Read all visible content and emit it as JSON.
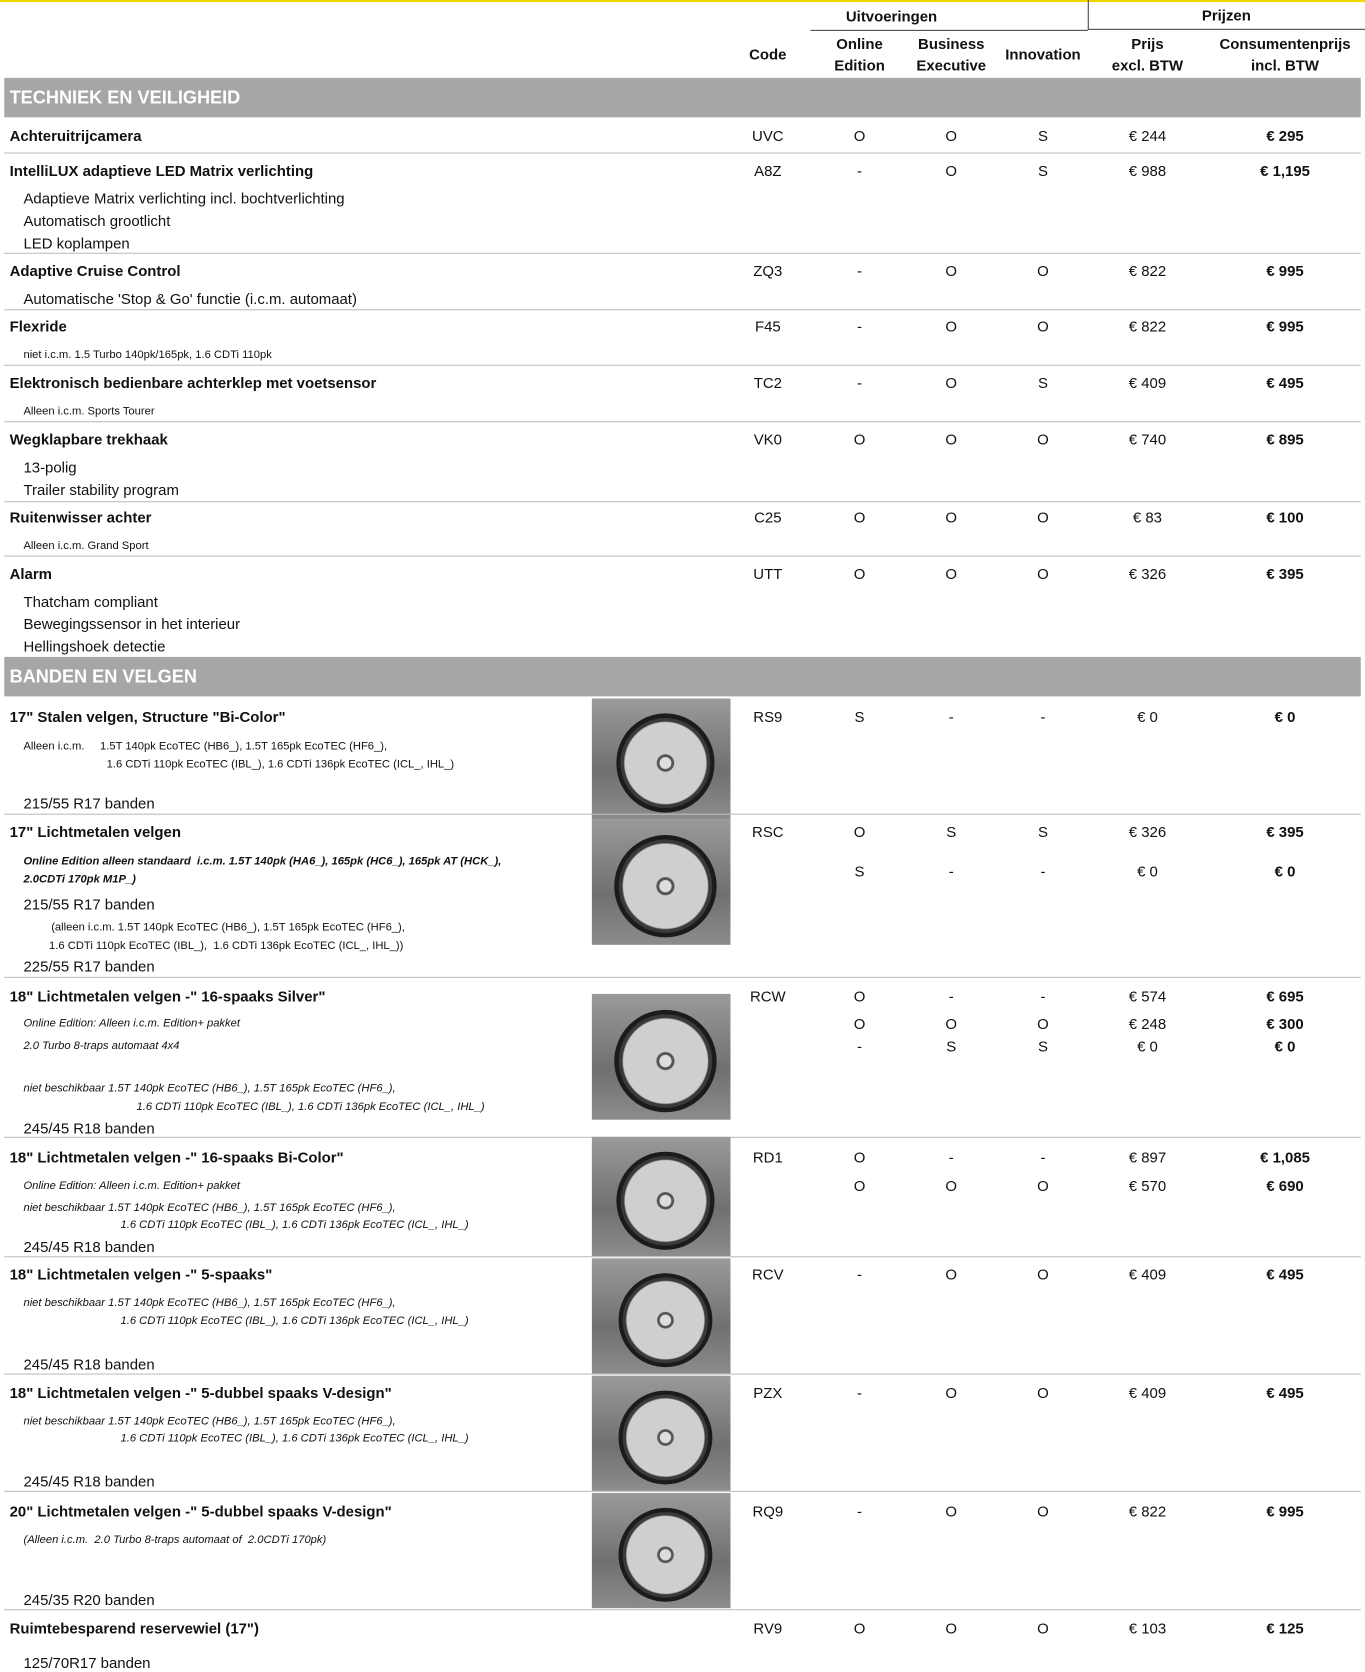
{
  "header": {
    "groups": [
      "Uitvoeringen",
      "Prijzen"
    ],
    "columns": [
      [
        "Code"
      ],
      [
        "Online",
        "Edition"
      ],
      [
        "Business",
        "Executive"
      ],
      [
        "Innovation"
      ],
      [
        "Prijs",
        "excl. BTW"
      ],
      [
        "Consumentenprijs",
        "incl. BTW"
      ]
    ]
  },
  "sections": [
    {
      "title": "TECHNIEK EN VEILIGHEID",
      "items": [
        {
          "name": "Achteruitrijcamera",
          "code": "UVC",
          "rows": [
            [
              "O",
              "O",
              "S",
              "€ 244",
              "€ 295"
            ]
          ],
          "notes": []
        },
        {
          "name": "IntelliLUX adaptieve LED Matrix verlichting",
          "code": "A8Z",
          "rows": [
            [
              "-",
              "O",
              "S",
              "€ 988",
              "€ 1,195"
            ]
          ],
          "notes": [
            "Adaptieve Matrix verlichting incl. bochtverlichting",
            "Automatisch grootlicht",
            "LED koplampen"
          ]
        },
        {
          "name": "Adaptive Cruise Control",
          "code": "ZQ3",
          "rows": [
            [
              "-",
              "O",
              "O",
              "€ 822",
              "€ 995"
            ]
          ],
          "notes": [
            "Automatische 'Stop & Go' functie (i.c.m. automaat)"
          ]
        },
        {
          "name": "Flexride",
          "code": "F45",
          "rows": [
            [
              "-",
              "O",
              "O",
              "€ 822",
              "€ 995"
            ]
          ],
          "notes": [
            "niet i.c.m. 1.5 Turbo 140pk/165pk, 1.6 CDTi 110pk"
          ]
        },
        {
          "name": "Elektronisch bedienbare achterklep met voetsensor",
          "code": "TC2",
          "rows": [
            [
              "-",
              "O",
              "S",
              "€ 409",
              "€ 495"
            ]
          ],
          "notes": [
            "Alleen i.c.m. Sports Tourer"
          ]
        },
        {
          "name": "Wegklapbare trekhaak",
          "code": "VK0",
          "rows": [
            [
              "O",
              "O",
              "O",
              "€ 740",
              "€ 895"
            ]
          ],
          "notes": [
            "13-polig",
            "Trailer stability program"
          ]
        },
        {
          "name": "Ruitenwisser achter",
          "code": "C25",
          "rows": [
            [
              "O",
              "O",
              "O",
              "€ 83",
              "€ 100"
            ]
          ],
          "notes": [
            "Alleen i.c.m. Grand Sport"
          ]
        },
        {
          "name": "Alarm",
          "code": "UTT",
          "rows": [
            [
              "O",
              "O",
              "O",
              "€ 326",
              "€ 395"
            ]
          ],
          "notes": [
            "Thatcham compliant",
            "Bewegingssensor in het interieur",
            "Hellingshoek detectie"
          ]
        }
      ]
    },
    {
      "title": "BANDEN EN VELGEN",
      "items": [
        {
          "name": "17\" Stalen velgen, Structure \"Bi-Color\"",
          "code": "RS9",
          "rows": [
            [
              "S",
              "-",
              "-",
              "€ 0",
              "€ 0"
            ]
          ],
          "notes": [
            "Alleen i.c.m.     1.5T 140pk EcoTEC (HB6_), 1.5T 165pk EcoTEC (HF6_),",
            "1.6 CDTi 110pk EcoTEC (IBL_), 1.6 CDTi 136pk EcoTEC (ICL_, IHL_)",
            "215/55 R17 banden"
          ]
        },
        {
          "name": "17\" Lichtmetalen velgen",
          "code": "RSC",
          "rows": [
            [
              "O",
              "S",
              "S",
              "€ 326",
              "€ 395"
            ],
            [
              "S",
              "-",
              "-",
              "€ 0",
              "€ 0"
            ]
          ],
          "notes": [
            "Online Edition alleen standaard  i.c.m. 1.5T 140pk (HA6_), 165pk (HC6_), 165pk AT (HCK_),",
            "2.0CDTi 170pk M1P_)",
            "215/55 R17 banden",
            "(alleen i.c.m. 1.5T 140pk EcoTEC (HB6_), 1.5T 165pk EcoTEC (HF6_),",
            "1.6 CDTi 110pk EcoTEC (IBL_),  1.6 CDTi 136pk EcoTEC (ICL_, IHL_))",
            "225/55 R17 banden"
          ]
        },
        {
          "name": "18\" Lichtmetalen velgen -\" 16-spaaks Silver\"",
          "code": "RCW",
          "rows": [
            [
              "O",
              "-",
              "-",
              "€ 574",
              "€ 695"
            ],
            [
              "O",
              "O",
              "O",
              "€ 248",
              "€ 300"
            ],
            [
              "-",
              "S",
              "S",
              "€ 0",
              "€ 0"
            ]
          ],
          "notes": [
            "Online Edition: Alleen i.c.m. Edition+ pakket",
            "2.0 Turbo 8-traps automaat 4x4",
            "niet beschikbaar 1.5T 140pk EcoTEC (HB6_), 1.5T 165pk EcoTEC (HF6_),",
            "1.6 CDTi 110pk EcoTEC (IBL_), 1.6 CDTi 136pk EcoTEC (ICL_, IHL_)",
            "245/45 R18 banden"
          ]
        },
        {
          "name": "18\" Lichtmetalen velgen -\" 16-spaaks Bi-Color\"",
          "code": "RD1",
          "rows": [
            [
              "O",
              "-",
              "-",
              "€ 897",
              "€ 1,085"
            ],
            [
              "O",
              "O",
              "O",
              "€ 570",
              "€ 690"
            ]
          ],
          "notes": [
            "Online Edition: Alleen i.c.m. Edition+ pakket",
            "niet beschikbaar 1.5T 140pk EcoTEC (HB6_), 1.5T 165pk EcoTEC (HF6_),",
            "1.6 CDTi 110pk EcoTEC (IBL_), 1.6 CDTi 136pk EcoTEC (ICL_, IHL_)",
            "245/45 R18 banden"
          ]
        },
        {
          "name": "18\" Lichtmetalen velgen -\" 5-spaaks\"",
          "code": "RCV",
          "rows": [
            [
              "-",
              "O",
              "O",
              "€ 409",
              "€ 495"
            ]
          ],
          "notes": [
            "niet beschikbaar 1.5T 140pk EcoTEC (HB6_), 1.5T 165pk EcoTEC (HF6_),",
            "1.6 CDTi 110pk EcoTEC (IBL_), 1.6 CDTi 136pk EcoTEC (ICL_, IHL_)",
            "245/45 R18 banden"
          ]
        },
        {
          "name": "18\" Lichtmetalen velgen -\" 5-dubbel spaaks V-design\"",
          "code": "PZX",
          "rows": [
            [
              "-",
              "O",
              "O",
              "€ 409",
              "€ 495"
            ]
          ],
          "notes": [
            "niet beschikbaar 1.5T 140pk EcoTEC (HB6_), 1.5T 165pk EcoTEC (HF6_),",
            "1.6 CDTi 110pk EcoTEC (IBL_), 1.6 CDTi 136pk EcoTEC (ICL_, IHL_)",
            "245/45 R18 banden"
          ]
        },
        {
          "name": "20\" Lichtmetalen velgen -\" 5-dubbel spaaks V-design\"",
          "code": "RQ9",
          "rows": [
            [
              "-",
              "O",
              "O",
              "€ 822",
              "€ 995"
            ]
          ],
          "notes": [
            "(Alleen i.c.m.  2.0 Turbo 8-traps automaat of  2.0CDTi 170pk)",
            "245/35 R20 banden"
          ]
        },
        {
          "name": "Ruimtebesparend reservewiel (17\")",
          "code": "RV9",
          "rows": [
            [
              "O",
              "O",
              "O",
              "€ 103",
              "€ 125"
            ]
          ],
          "notes": [
            "125/70R17 banden"
          ]
        }
      ]
    }
  ]
}
